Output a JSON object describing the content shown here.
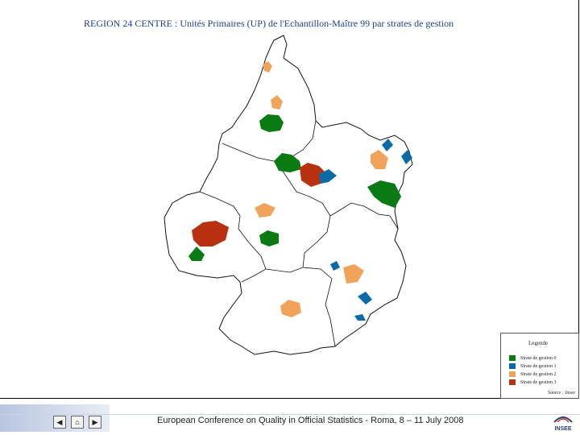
{
  "title": "REGION 24   CENTRE : Unités Primaires (UP) de l'Echantillon-Maître 99 par strates de gestion",
  "legend": {
    "title": "Legende",
    "items": [
      {
        "label": "Strate de gestion 0",
        "color": "#0a7a12"
      },
      {
        "label": "Strate de gestion 1",
        "color": "#0b6aa8"
      },
      {
        "label": "Strate de gestion 2",
        "color": "#f2a35a"
      },
      {
        "label": "Strate de gestion 3",
        "color": "#b83110"
      }
    ],
    "source": "Source : Insee"
  },
  "footer": {
    "text": "European Conference on Quality in Official Statistics -  Roma, 8 – 11 July 2008",
    "logo_text": "INSEE",
    "nav": {
      "prev": "◀",
      "home": "⌂",
      "next": "▶"
    }
  }
}
